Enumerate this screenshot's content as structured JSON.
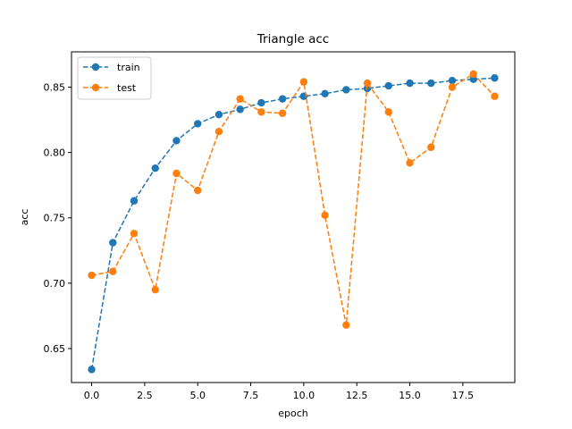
{
  "chart_data": {
    "type": "line",
    "title": "Triangle acc",
    "xlabel": "epoch",
    "ylabel": "acc",
    "xlim": [
      -0.95,
      19.95
    ],
    "ylim": [
      0.624,
      0.877
    ],
    "xticks": [
      0.0,
      2.5,
      5.0,
      7.5,
      10.0,
      12.5,
      15.0,
      17.5
    ],
    "xtick_labels": [
      "0.0",
      "2.5",
      "5.0",
      "7.5",
      "10.0",
      "12.5",
      "15.0",
      "17.5"
    ],
    "yticks": [
      0.65,
      0.7,
      0.75,
      0.8,
      0.85
    ],
    "ytick_labels": [
      "0.65",
      "0.70",
      "0.75",
      "0.80",
      "0.85"
    ],
    "grid": false,
    "legend_position": "top-left",
    "x": [
      0,
      1,
      2,
      3,
      4,
      5,
      6,
      7,
      8,
      9,
      10,
      11,
      12,
      13,
      14,
      15,
      16,
      17,
      18,
      19
    ],
    "series": [
      {
        "name": "train",
        "color": "#1f77b4",
        "linestyle": "dashed",
        "marker": "circle",
        "values": [
          0.634,
          0.731,
          0.763,
          0.788,
          0.809,
          0.822,
          0.829,
          0.833,
          0.838,
          0.841,
          0.843,
          0.845,
          0.848,
          0.849,
          0.851,
          0.853,
          0.853,
          0.855,
          0.856,
          0.857
        ]
      },
      {
        "name": "test",
        "color": "#ff7f0e",
        "linestyle": "dashed",
        "marker": "circle",
        "values": [
          0.706,
          0.709,
          0.738,
          0.695,
          0.784,
          0.771,
          0.816,
          0.841,
          0.831,
          0.83,
          0.854,
          0.752,
          0.668,
          0.853,
          0.831,
          0.792,
          0.804,
          0.85,
          0.86,
          0.843
        ]
      }
    ]
  }
}
